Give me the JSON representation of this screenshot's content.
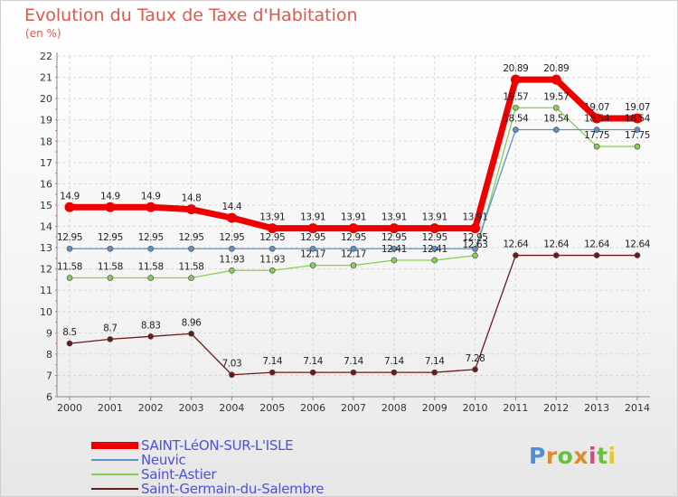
{
  "header": {
    "title": "Evolution du Taux de Taxe d'Habitation",
    "subtitle": "(en %)"
  },
  "brand": {
    "logo_text": "Proxiti"
  },
  "chart_data": {
    "type": "line",
    "title": "Evolution du Taux de Taxe d'Habitation",
    "subtitle": "(en %)",
    "xlabel": "",
    "ylabel": "",
    "x": [
      "2000",
      "2001",
      "2002",
      "2003",
      "2004",
      "2005",
      "2006",
      "2007",
      "2008",
      "2009",
      "2010",
      "2011",
      "2012",
      "2013",
      "2014"
    ],
    "ylim": [
      6,
      22
    ],
    "yticks": [
      "6",
      "7",
      "8",
      "9",
      "10",
      "11",
      "12",
      "13",
      "14",
      "15",
      "16",
      "17",
      "18",
      "19",
      "20",
      "21",
      "22"
    ],
    "grid": true,
    "legend_position": "bottom-left",
    "series": [
      {
        "name": "Saint-Germain-du-Salembre",
        "color": "#6b1a1a",
        "values": [
          8.5,
          8.7,
          8.83,
          8.96,
          7.03,
          7.14,
          7.14,
          7.14,
          7.14,
          7.14,
          7.28,
          12.64,
          12.64,
          12.64,
          12.64
        ],
        "labels": [
          "8.5",
          "8.7",
          "8.83",
          "8.96",
          "7.03",
          "7.14",
          "7.14",
          "7.14",
          "7.14",
          "7.14",
          "7.28",
          "12.64",
          "12.64",
          "12.64",
          "12.64"
        ]
      },
      {
        "name": "Saint-Astier",
        "color": "#86cf52",
        "values": [
          11.58,
          11.58,
          11.58,
          11.58,
          11.93,
          11.93,
          12.17,
          12.17,
          12.41,
          12.41,
          12.63,
          19.57,
          19.57,
          17.75,
          17.75
        ],
        "labels": [
          "11.58",
          "11.58",
          "11.58",
          "11.58",
          "11.93",
          "11.93",
          "12.17",
          "12.17",
          "12.41",
          "12.41",
          "12.63",
          "19.57",
          "19.57",
          "17.75",
          "17.75"
        ]
      },
      {
        "name": "Neuvic",
        "color": "#5b93c6",
        "values": [
          12.95,
          12.95,
          12.95,
          12.95,
          12.95,
          12.95,
          12.95,
          12.95,
          12.95,
          12.95,
          12.95,
          18.54,
          18.54,
          18.54,
          18.54
        ],
        "labels": [
          "12.95",
          "12.95",
          "12.95",
          "12.95",
          "12.95",
          "12.95",
          "12.95",
          "12.95",
          "12.95",
          "12.95",
          "12.95",
          "18.54",
          "18.54",
          "18.54",
          "18.54"
        ]
      },
      {
        "name": "SAINT-LéON-SUR-L'ISLE",
        "color": "#ee0000",
        "values": [
          14.9,
          14.9,
          14.9,
          14.8,
          14.4,
          13.91,
          13.91,
          13.91,
          13.91,
          13.91,
          13.91,
          20.89,
          20.89,
          19.07,
          19.07
        ],
        "labels": [
          "14.9",
          "14.9",
          "14.9",
          "14.8",
          "14.4",
          "13.91",
          "13.91",
          "13.91",
          "13.91",
          "13.91",
          "13.91",
          "20.89",
          "20.89",
          "19.07",
          "19.07"
        ]
      }
    ]
  },
  "legend": {
    "items": [
      {
        "label": "SAINT-LéON-SUR-L'ISLE",
        "color": "#ee0000"
      },
      {
        "label": "Neuvic",
        "color": "#5b93c6"
      },
      {
        "label": "Saint-Astier",
        "color": "#86cf52"
      },
      {
        "label": "Saint-Germain-du-Salembre",
        "color": "#6b1a1a"
      }
    ]
  }
}
